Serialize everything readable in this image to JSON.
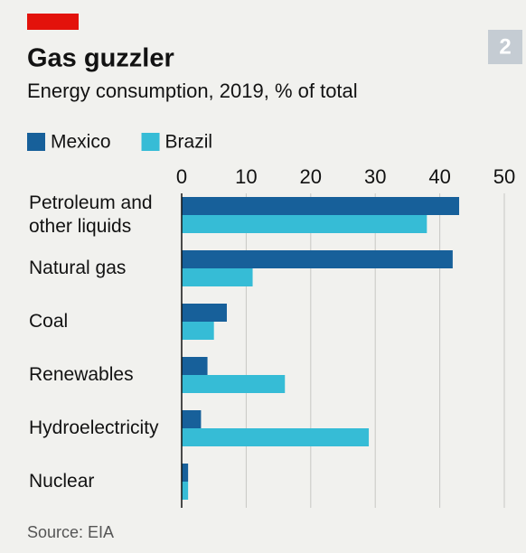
{
  "chart_data": {
    "type": "barh",
    "title": "Gas guzzler",
    "subtitle": "Energy consumption, 2019, % of total",
    "chart_number": "2",
    "source": "Source: EIA",
    "categories": [
      "Petroleum and other liquids",
      "Natural gas",
      "Coal",
      "Renewables",
      "Hydroelectricity",
      "Nuclear"
    ],
    "series": [
      {
        "name": "Mexico",
        "color": "#17609a",
        "values": [
          43,
          42,
          7,
          4,
          3,
          1
        ]
      },
      {
        "name": "Brazil",
        "color": "#36bcd6",
        "values": [
          38,
          11,
          5,
          16,
          29,
          1
        ]
      }
    ],
    "xlim": [
      0,
      50
    ],
    "xticks": [
      0,
      10,
      20,
      30,
      40,
      50
    ],
    "grid": true,
    "legend": "top"
  }
}
